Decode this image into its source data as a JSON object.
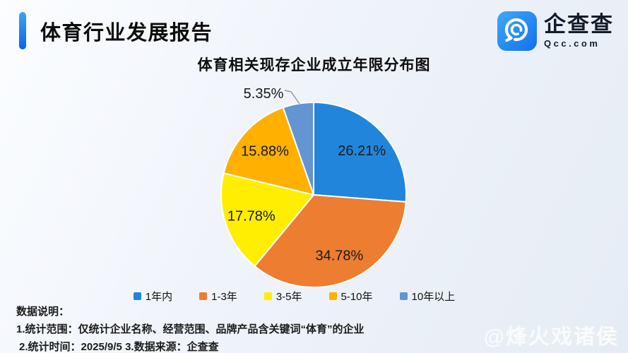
{
  "header": {
    "title": "体育行业发展报告"
  },
  "logo": {
    "brand": "企查查",
    "domain": "Qcc.com"
  },
  "chart_data": {
    "type": "pie",
    "title": "体育相关现存企业成立年限分布图",
    "labels": [
      "1年内",
      "1-3年",
      "3-5年",
      "5-10年",
      "10年以上"
    ],
    "values": [
      26.21,
      34.78,
      17.78,
      15.88,
      5.35
    ],
    "display_labels": [
      "26.21%",
      "34.78%",
      "17.78%",
      "15.88%",
      "5.35%"
    ],
    "colors": [
      "#2186DB",
      "#ED7D31",
      "#FFEE00",
      "#FFB000",
      "#6295D2"
    ],
    "start_angle_deg": 0,
    "direction": "clockwise",
    "legend_position": "bottom",
    "outside_label_indexes": [
      4
    ],
    "slice_divider_color": "#ffffff",
    "label_color": "#1a1a1a",
    "leader_line_color": "#8a97a8"
  },
  "footer": {
    "heading": "数据说明：",
    "lines": [
      "1.统计范围：仅统计企业名称、经营范围、品牌产品含关键词“体育”的企业",
      "2.统计时间：2025/9/5  3.数据来源：企查查"
    ]
  },
  "watermark": "@烽火戏诸侯"
}
